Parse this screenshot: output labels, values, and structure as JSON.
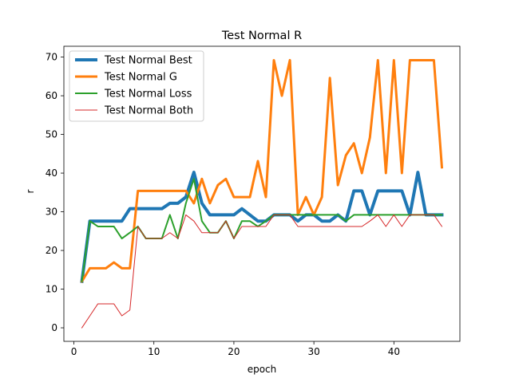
{
  "chart_data": {
    "type": "line",
    "title": "Test Normal R",
    "xlabel": "epoch",
    "ylabel": "r",
    "xlim": [
      -1.25,
      48.25
    ],
    "ylim": [
      -3.5,
      72.8
    ],
    "xticks": [
      0,
      10,
      20,
      30,
      40
    ],
    "yticks": [
      0,
      10,
      20,
      30,
      40,
      50,
      60,
      70
    ],
    "grid": false,
    "legend_position": "top-left",
    "x": [
      1,
      2,
      3,
      4,
      5,
      6,
      7,
      8,
      9,
      10,
      11,
      12,
      13,
      14,
      15,
      16,
      17,
      18,
      19,
      20,
      21,
      22,
      23,
      24,
      25,
      26,
      27,
      28,
      29,
      30,
      31,
      32,
      33,
      34,
      35,
      36,
      37,
      38,
      39,
      40,
      41,
      42,
      43,
      44,
      45,
      46
    ],
    "series": [
      {
        "name": "Test Normal Best",
        "color": "#1f77b4",
        "linewidth": 4,
        "values": [
          12.0,
          27.6,
          27.6,
          27.6,
          27.6,
          27.6,
          30.8,
          30.8,
          30.8,
          30.8,
          30.8,
          32.2,
          32.2,
          33.8,
          40.2,
          32.2,
          29.2,
          29.2,
          29.2,
          29.2,
          30.8,
          29.2,
          27.6,
          27.6,
          29.2,
          29.2,
          29.2,
          27.6,
          29.2,
          29.2,
          27.6,
          27.6,
          29.2,
          27.6,
          35.4,
          35.4,
          29.2,
          35.4,
          35.4,
          35.4,
          35.4,
          29.2,
          40.2,
          29.2,
          29.2,
          29.2
        ]
      },
      {
        "name": "Test Normal G",
        "color": "#ff7f0e",
        "linewidth": 3,
        "values": [
          12.0,
          15.4,
          15.4,
          15.4,
          16.9,
          15.4,
          15.4,
          35.4,
          35.4,
          35.4,
          35.4,
          35.4,
          35.4,
          35.4,
          32.2,
          38.5,
          32.2,
          36.9,
          38.5,
          33.8,
          33.8,
          33.8,
          43.1,
          33.8,
          69.2,
          60.0,
          69.2,
          29.2,
          33.8,
          29.2,
          33.8,
          64.6,
          36.9,
          44.6,
          47.7,
          40.0,
          49.2,
          69.2,
          40.0,
          69.2,
          40.0,
          69.2,
          69.2,
          69.2,
          69.2,
          41.5
        ]
      },
      {
        "name": "Test Normal Loss",
        "color": "#2ca02c",
        "linewidth": 2,
        "values": [
          12.0,
          27.6,
          26.2,
          26.2,
          26.2,
          23.1,
          24.6,
          26.2,
          23.1,
          23.1,
          23.1,
          29.2,
          23.1,
          32.2,
          38.5,
          27.6,
          24.6,
          24.6,
          27.6,
          23.1,
          27.6,
          27.6,
          26.2,
          27.6,
          29.2,
          29.2,
          29.2,
          29.2,
          29.2,
          29.2,
          29.2,
          29.2,
          29.2,
          27.6,
          29.2,
          29.2,
          29.2,
          29.2,
          29.2,
          29.2,
          29.2,
          29.2,
          29.2,
          29.2,
          29.2,
          29.2
        ]
      },
      {
        "name": "Test Normal Both",
        "color": "#d62728",
        "linewidth": 1,
        "values": [
          0.0,
          3.1,
          6.2,
          6.2,
          6.2,
          3.1,
          4.6,
          26.2,
          23.1,
          23.1,
          23.1,
          24.6,
          23.1,
          29.2,
          27.6,
          24.6,
          24.6,
          24.6,
          27.6,
          23.1,
          26.2,
          26.2,
          26.2,
          26.2,
          29.2,
          29.2,
          29.2,
          26.2,
          26.2,
          26.2,
          26.2,
          26.2,
          26.2,
          26.2,
          26.2,
          26.2,
          27.6,
          29.2,
          26.2,
          29.2,
          26.2,
          29.2,
          29.2,
          29.2,
          29.2,
          26.2
        ]
      }
    ]
  }
}
